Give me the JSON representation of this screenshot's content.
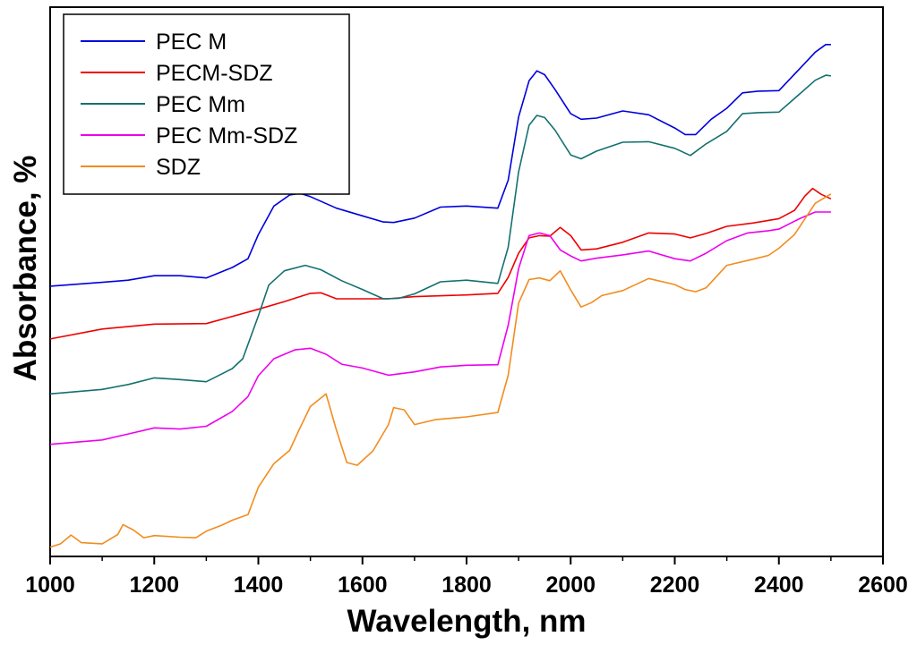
{
  "chart_data": {
    "type": "line",
    "title": "",
    "xlabel": "Wavelength, nm",
    "ylabel": "Absorbance, %",
    "xlim": [
      1000,
      2600
    ],
    "ylim": [
      0,
      100
    ],
    "xticks": [
      "1000",
      "1200",
      "1400",
      "1600",
      "1800",
      "2000",
      "2200",
      "2400",
      "2600"
    ],
    "xtick_values": [
      1000,
      1200,
      1400,
      1600,
      1800,
      2000,
      2200,
      2400,
      2600
    ],
    "grid": false,
    "legend_position": "top-left",
    "y_tick_labels_shown": false,
    "series": [
      {
        "name": "PEC M",
        "color": "#0000dd",
        "points": [
          [
            1000,
            49.2
          ],
          [
            1100,
            49.9
          ],
          [
            1150,
            50.3
          ],
          [
            1200,
            51.1
          ],
          [
            1250,
            51.1
          ],
          [
            1300,
            50.7
          ],
          [
            1350,
            52.6
          ],
          [
            1380,
            54.2
          ],
          [
            1400,
            58.6
          ],
          [
            1430,
            63.8
          ],
          [
            1460,
            65.8
          ],
          [
            1480,
            66.1
          ],
          [
            1500,
            65.5
          ],
          [
            1550,
            63.4
          ],
          [
            1600,
            62.0
          ],
          [
            1640,
            60.9
          ],
          [
            1660,
            60.8
          ],
          [
            1700,
            61.6
          ],
          [
            1750,
            63.6
          ],
          [
            1800,
            63.8
          ],
          [
            1860,
            63.4
          ],
          [
            1880,
            68.5
          ],
          [
            1900,
            80.0
          ],
          [
            1920,
            86.6
          ],
          [
            1935,
            88.4
          ],
          [
            1950,
            87.7
          ],
          [
            1970,
            85.0
          ],
          [
            2000,
            80.6
          ],
          [
            2020,
            79.6
          ],
          [
            2050,
            79.8
          ],
          [
            2100,
            81.1
          ],
          [
            2150,
            80.4
          ],
          [
            2200,
            78.0
          ],
          [
            2220,
            76.8
          ],
          [
            2240,
            76.8
          ],
          [
            2270,
            79.6
          ],
          [
            2300,
            81.6
          ],
          [
            2330,
            84.4
          ],
          [
            2360,
            84.7
          ],
          [
            2400,
            84.8
          ],
          [
            2440,
            88.8
          ],
          [
            2470,
            91.8
          ],
          [
            2490,
            93.2
          ],
          [
            2500,
            93.2
          ]
        ]
      },
      {
        "name": "PECM-SDZ",
        "color": "#ee0000",
        "points": [
          [
            1000,
            39.6
          ],
          [
            1100,
            41.4
          ],
          [
            1200,
            42.3
          ],
          [
            1300,
            42.4
          ],
          [
            1400,
            45.0
          ],
          [
            1450,
            46.4
          ],
          [
            1500,
            47.9
          ],
          [
            1520,
            48.0
          ],
          [
            1550,
            46.9
          ],
          [
            1600,
            46.9
          ],
          [
            1650,
            46.9
          ],
          [
            1700,
            47.3
          ],
          [
            1800,
            47.6
          ],
          [
            1860,
            47.9
          ],
          [
            1880,
            50.8
          ],
          [
            1900,
            55.2
          ],
          [
            1920,
            58.0
          ],
          [
            1940,
            58.4
          ],
          [
            1960,
            58.3
          ],
          [
            1980,
            59.9
          ],
          [
            2000,
            58.4
          ],
          [
            2020,
            55.8
          ],
          [
            2050,
            56.0
          ],
          [
            2100,
            57.2
          ],
          [
            2150,
            58.9
          ],
          [
            2200,
            58.7
          ],
          [
            2230,
            58.0
          ],
          [
            2260,
            58.8
          ],
          [
            2300,
            60.1
          ],
          [
            2350,
            60.7
          ],
          [
            2400,
            61.5
          ],
          [
            2430,
            63.0
          ],
          [
            2450,
            65.6
          ],
          [
            2465,
            67.0
          ],
          [
            2480,
            66.0
          ],
          [
            2500,
            65.1
          ]
        ]
      },
      {
        "name": "PEC Mm",
        "color": "#147070",
        "points": [
          [
            1000,
            29.6
          ],
          [
            1100,
            30.4
          ],
          [
            1150,
            31.3
          ],
          [
            1200,
            32.5
          ],
          [
            1250,
            32.2
          ],
          [
            1300,
            31.8
          ],
          [
            1350,
            34.2
          ],
          [
            1370,
            36.0
          ],
          [
            1400,
            43.8
          ],
          [
            1420,
            49.4
          ],
          [
            1450,
            52.0
          ],
          [
            1490,
            53.0
          ],
          [
            1520,
            52.2
          ],
          [
            1560,
            50.2
          ],
          [
            1600,
            48.6
          ],
          [
            1640,
            46.9
          ],
          [
            1670,
            47.0
          ],
          [
            1700,
            47.8
          ],
          [
            1750,
            50.0
          ],
          [
            1800,
            50.3
          ],
          [
            1860,
            49.7
          ],
          [
            1880,
            56.3
          ],
          [
            1900,
            70.0
          ],
          [
            1920,
            78.5
          ],
          [
            1935,
            80.3
          ],
          [
            1950,
            79.9
          ],
          [
            1970,
            77.6
          ],
          [
            2000,
            73.1
          ],
          [
            2020,
            72.4
          ],
          [
            2050,
            73.8
          ],
          [
            2100,
            75.4
          ],
          [
            2150,
            75.5
          ],
          [
            2200,
            74.3
          ],
          [
            2230,
            73.0
          ],
          [
            2260,
            75.1
          ],
          [
            2300,
            77.4
          ],
          [
            2330,
            80.6
          ],
          [
            2360,
            80.8
          ],
          [
            2400,
            80.9
          ],
          [
            2440,
            84.2
          ],
          [
            2470,
            86.7
          ],
          [
            2490,
            87.6
          ],
          [
            2500,
            87.5
          ]
        ]
      },
      {
        "name": "PEC Mm-SDZ",
        "color": "#ee00ee",
        "points": [
          [
            1000,
            20.4
          ],
          [
            1100,
            21.2
          ],
          [
            1150,
            22.3
          ],
          [
            1200,
            23.4
          ],
          [
            1250,
            23.2
          ],
          [
            1300,
            23.7
          ],
          [
            1350,
            26.4
          ],
          [
            1380,
            29.1
          ],
          [
            1400,
            32.9
          ],
          [
            1430,
            36.0
          ],
          [
            1470,
            37.6
          ],
          [
            1500,
            37.9
          ],
          [
            1530,
            36.8
          ],
          [
            1560,
            35.0
          ],
          [
            1600,
            34.3
          ],
          [
            1650,
            33.0
          ],
          [
            1700,
            33.6
          ],
          [
            1750,
            34.5
          ],
          [
            1800,
            34.8
          ],
          [
            1860,
            34.9
          ],
          [
            1880,
            42.1
          ],
          [
            1900,
            52.4
          ],
          [
            1920,
            58.4
          ],
          [
            1940,
            58.9
          ],
          [
            1960,
            58.4
          ],
          [
            1980,
            55.8
          ],
          [
            2000,
            54.7
          ],
          [
            2020,
            53.8
          ],
          [
            2050,
            54.3
          ],
          [
            2100,
            54.9
          ],
          [
            2150,
            55.6
          ],
          [
            2200,
            54.2
          ],
          [
            2230,
            53.8
          ],
          [
            2260,
            55.2
          ],
          [
            2300,
            57.5
          ],
          [
            2340,
            58.9
          ],
          [
            2380,
            59.3
          ],
          [
            2400,
            59.6
          ],
          [
            2440,
            61.5
          ],
          [
            2470,
            62.7
          ],
          [
            2500,
            62.7
          ]
        ]
      },
      {
        "name": "SDZ",
        "color": "#f28c1e",
        "points": [
          [
            1000,
            1.7
          ],
          [
            1020,
            2.3
          ],
          [
            1040,
            3.9
          ],
          [
            1060,
            2.5
          ],
          [
            1100,
            2.3
          ],
          [
            1130,
            4.0
          ],
          [
            1140,
            5.8
          ],
          [
            1160,
            4.8
          ],
          [
            1180,
            3.4
          ],
          [
            1200,
            3.8
          ],
          [
            1250,
            3.5
          ],
          [
            1280,
            3.4
          ],
          [
            1300,
            4.6
          ],
          [
            1330,
            5.7
          ],
          [
            1350,
            6.6
          ],
          [
            1380,
            7.6
          ],
          [
            1400,
            12.6
          ],
          [
            1430,
            16.9
          ],
          [
            1460,
            19.3
          ],
          [
            1480,
            23.4
          ],
          [
            1500,
            27.3
          ],
          [
            1530,
            29.6
          ],
          [
            1550,
            23.0
          ],
          [
            1570,
            17.1
          ],
          [
            1590,
            16.6
          ],
          [
            1620,
            19.2
          ],
          [
            1650,
            24.0
          ],
          [
            1660,
            27.1
          ],
          [
            1680,
            26.7
          ],
          [
            1700,
            24.0
          ],
          [
            1740,
            24.9
          ],
          [
            1800,
            25.4
          ],
          [
            1860,
            26.2
          ],
          [
            1880,
            33.0
          ],
          [
            1900,
            46.1
          ],
          [
            1920,
            50.4
          ],
          [
            1940,
            50.7
          ],
          [
            1960,
            50.2
          ],
          [
            1980,
            52.0
          ],
          [
            2000,
            48.5
          ],
          [
            2020,
            45.4
          ],
          [
            2040,
            46.2
          ],
          [
            2060,
            47.5
          ],
          [
            2100,
            48.4
          ],
          [
            2150,
            50.6
          ],
          [
            2200,
            49.5
          ],
          [
            2220,
            48.6
          ],
          [
            2240,
            48.2
          ],
          [
            2260,
            48.9
          ],
          [
            2300,
            53.0
          ],
          [
            2350,
            54.1
          ],
          [
            2380,
            54.8
          ],
          [
            2400,
            56.1
          ],
          [
            2430,
            58.6
          ],
          [
            2470,
            64.3
          ],
          [
            2500,
            66.0
          ]
        ]
      }
    ]
  }
}
